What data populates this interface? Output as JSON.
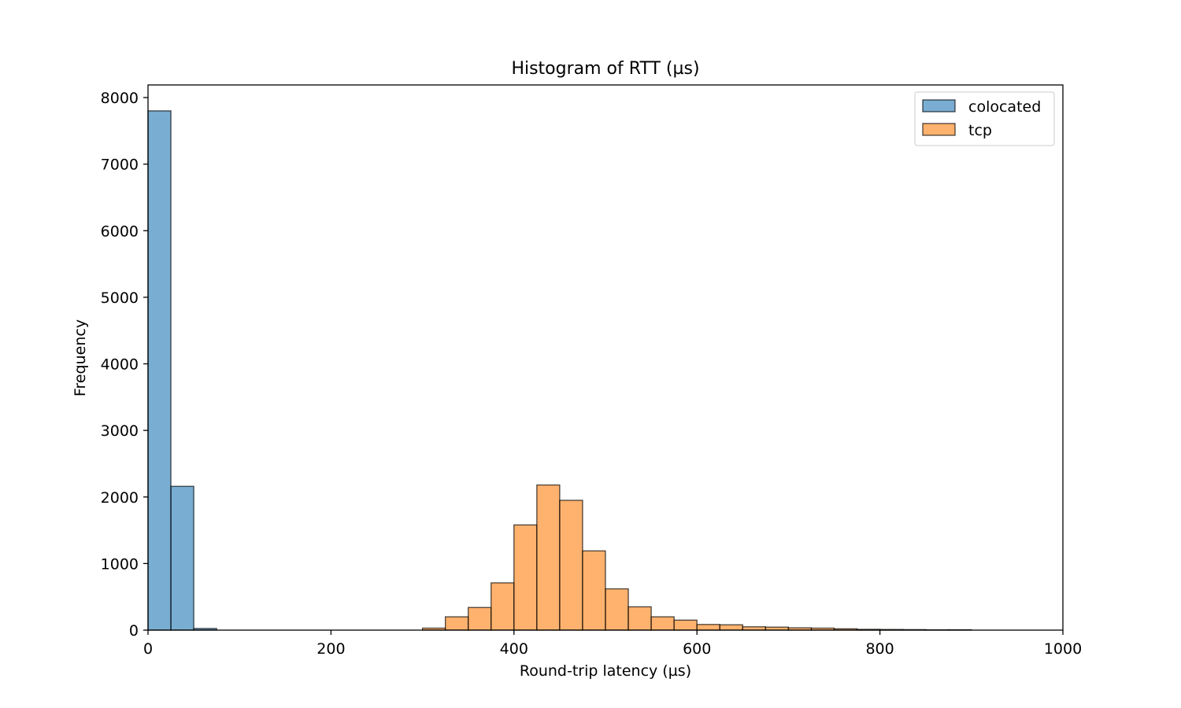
{
  "chart_data": {
    "type": "bar",
    "title": "Histogram of RTT (µs)",
    "xlabel": "Round-trip latency (µs)",
    "ylabel": "Frequency",
    "xlim": [
      0,
      1000
    ],
    "ylim": [
      0,
      8200
    ],
    "xticks": [
      0,
      200,
      400,
      600,
      800,
      1000
    ],
    "yticks": [
      0,
      1000,
      2000,
      3000,
      4000,
      5000,
      6000,
      7000,
      8000
    ],
    "bin_width": 25,
    "grid": false,
    "legend_position": "top-right",
    "series": [
      {
        "name": "colocated",
        "color": "#1f77b4",
        "alpha": 0.6,
        "bins": [
          {
            "start": 0,
            "count": 7800
          },
          {
            "start": 25,
            "count": 2160
          },
          {
            "start": 50,
            "count": 25
          }
        ]
      },
      {
        "name": "tcp",
        "color": "#ff7f0e",
        "alpha": 0.6,
        "bins": [
          {
            "start": 300,
            "count": 30
          },
          {
            "start": 325,
            "count": 200
          },
          {
            "start": 350,
            "count": 340
          },
          {
            "start": 375,
            "count": 710
          },
          {
            "start": 400,
            "count": 1580
          },
          {
            "start": 425,
            "count": 2180
          },
          {
            "start": 450,
            "count": 1950
          },
          {
            "start": 475,
            "count": 1190
          },
          {
            "start": 500,
            "count": 620
          },
          {
            "start": 525,
            "count": 350
          },
          {
            "start": 550,
            "count": 200
          },
          {
            "start": 575,
            "count": 150
          },
          {
            "start": 600,
            "count": 85
          },
          {
            "start": 625,
            "count": 80
          },
          {
            "start": 650,
            "count": 50
          },
          {
            "start": 675,
            "count": 45
          },
          {
            "start": 700,
            "count": 35
          },
          {
            "start": 725,
            "count": 30
          },
          {
            "start": 750,
            "count": 20
          },
          {
            "start": 775,
            "count": 12
          },
          {
            "start": 800,
            "count": 10
          },
          {
            "start": 825,
            "count": 8
          },
          {
            "start": 850,
            "count": 5
          },
          {
            "start": 875,
            "count": 6
          }
        ]
      }
    ]
  }
}
